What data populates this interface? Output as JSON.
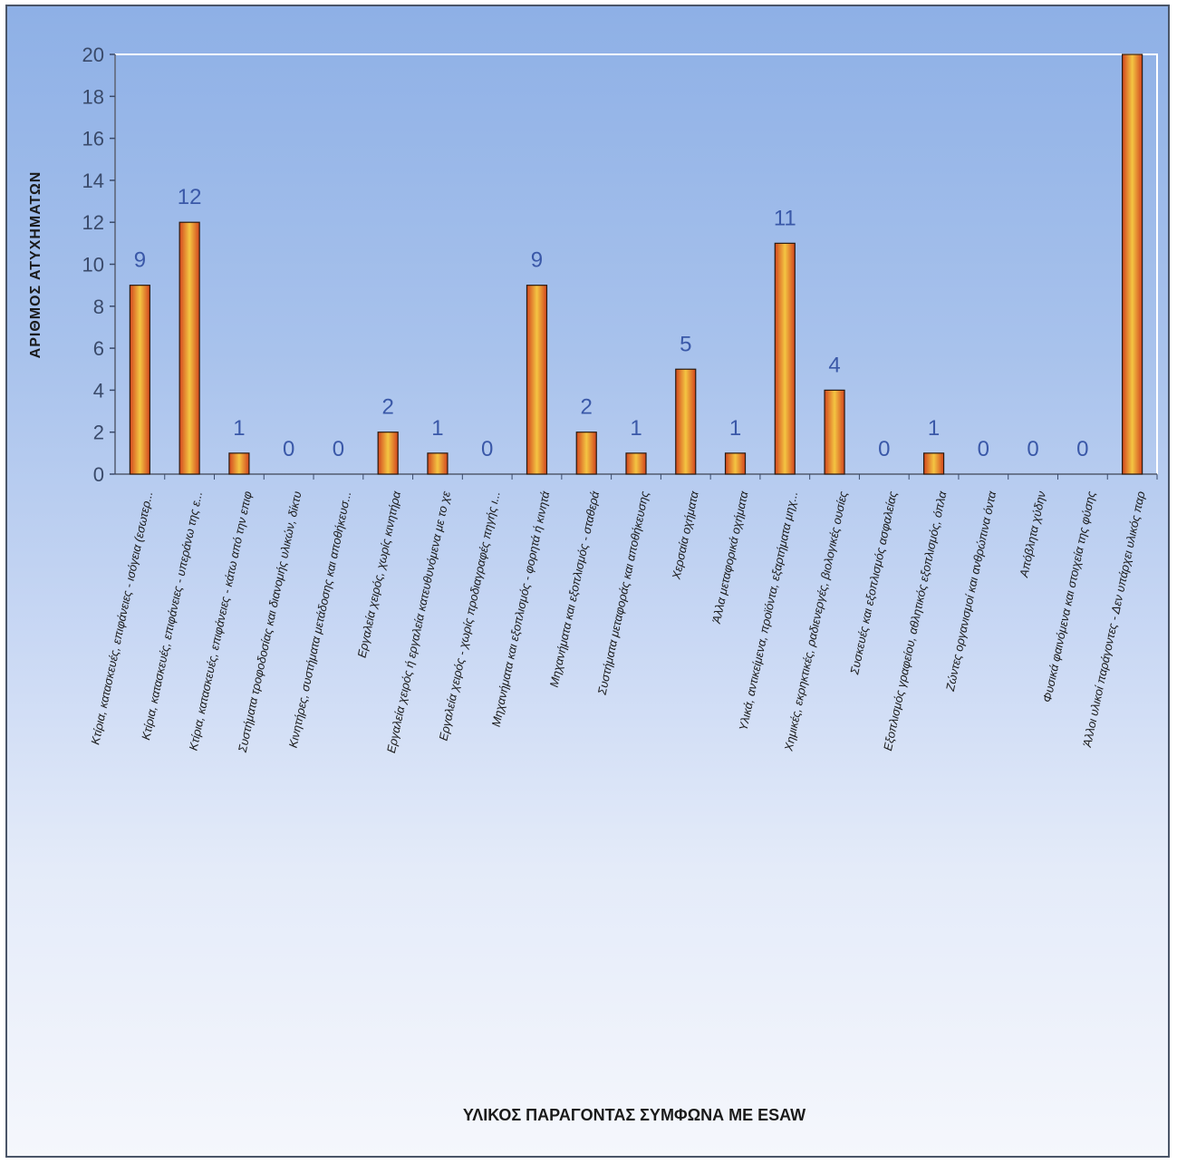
{
  "chart_data": {
    "type": "bar",
    "title": "",
    "xlabel": "ΥΛΙΚΟΣ ΠΑΡΑΓΟΝΤΑΣ ΣΥΜΦΩΝΑ ΜΕ ESAW",
    "ylabel": "ΑΡΙΘΜΟΣ ΑΤΥΧΗΜΑΤΩΝ",
    "ylim": [
      0,
      20
    ],
    "yticks": [
      0,
      2,
      4,
      6,
      8,
      10,
      12,
      14,
      16,
      18,
      20
    ],
    "grid": false,
    "legend": "none",
    "bar_color_edge": "#d2451e",
    "bar_color_center": "#f4c542",
    "categories": [
      "Κτίρια, κατασκευές, επιφάνειες - ισόγεια (εσωτερ...",
      "Κτίρια, κατασκευές, επιφάνειες - υπεράνω της ε...",
      "Κτίρια, κατασκευές, επιφάνειες - κάτω από την επιφ",
      "Συστήματα τροφοδοσίας και διανομής υλικών, δίκτυ",
      "Κινητήρες, συστήματα μετάδοσης και αποθήκευσ...",
      "Εργαλεία χειρός, χωρίς κινητήρα",
      "Εργαλεία χειρός ή εργαλεία κατευθυνόμενα με το χε",
      "Εργαλεία χειρός - χωρίς προδιαγραφές πηγής ι...",
      "Μηχανήματα και εξοπλισμός - φορητά ή κινητά",
      "Μηχανήματα και εξοπλισμός - σταθερά",
      "Συστήματα μεταφοράς και αποθήκευσης",
      "Χερσαία οχήματα",
      "Άλλα μεταφορικά οχήματα",
      "Υλικά, αντικείμενα, προϊόντα, εξαρτήματα μηχ...",
      "Χημικές, εκρηκτικές, ραδιενεργές, βιολογικές ουσίες",
      "Συσκευές και εξοπλισμός ασφαλείας",
      "Εξοπλισμός γραφείου, αθλητικός εξοπλισμός, όπλα",
      "Ζώντες οργανισμοί και ανθρώπινα όντα",
      "Απόβλητα χύδην",
      "Φυσικά φαινόμενα και στοιχεία της φύσης",
      "Άλλοι υλικοί παράγοντες - Δεν υπάρχει υλικός παρ"
    ],
    "values": [
      9,
      12,
      1,
      0,
      0,
      2,
      1,
      0,
      9,
      2,
      1,
      5,
      1,
      11,
      4,
      0,
      1,
      0,
      0,
      0,
      20
    ],
    "data_labels": [
      "9",
      "12",
      "1",
      "0",
      "0",
      "2",
      "1",
      "0",
      "9",
      "2",
      "1",
      "5",
      "1",
      "11",
      "4",
      "0",
      "1",
      "0",
      "0",
      "0",
      ""
    ]
  }
}
